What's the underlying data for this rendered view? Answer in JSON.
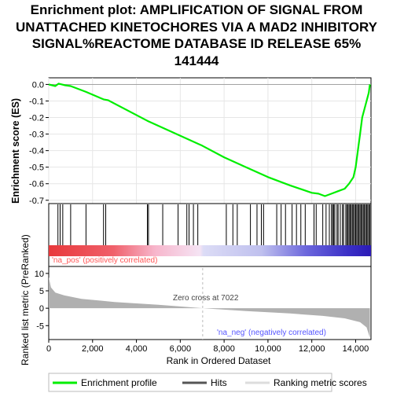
{
  "title_lines": [
    "Enrichment plot: AMPLIFICATION OF SIGNAL FROM",
    "UNATTACHED KINETOCHORES VIA A MAD2 INHIBITORY",
    "SIGNAL%REACTOME DATABASE ID RELEASE 65%",
    "141444"
  ],
  "colors": {
    "es_line": "#00ee00",
    "hit": "#000000",
    "metric_fill": "#b0b0b0",
    "pos_label": "#ff5555",
    "neg_label": "#5555ff",
    "zero_line": "#bbbbbb",
    "grid": "#e6e6e6"
  },
  "chart_data": {
    "type": "line",
    "xlabel": "Rank in Ordered Dataset",
    "es_ylabel": "Enrichment score (ES)",
    "metric_ylabel": "Ranked list metric (PreRanked)",
    "xlim": [
      0,
      14700
    ],
    "x_ticks": [
      0,
      2000,
      4000,
      6000,
      8000,
      10000,
      12000,
      14000
    ],
    "x_tick_labels": [
      "0",
      "2,000",
      "4,000",
      "6,000",
      "8,000",
      "10,000",
      "12,000",
      "14,000"
    ],
    "es_ylim": [
      -0.72,
      0.04
    ],
    "es_ticks": [
      0.0,
      -0.1,
      -0.2,
      -0.3,
      -0.4,
      -0.5,
      -0.6,
      -0.7
    ],
    "es_tick_labels": [
      "0.0",
      "-0.1",
      "-0.2",
      "-0.3",
      "-0.4",
      "-0.5",
      "-0.6",
      "-0.7"
    ],
    "metric_ylim": [
      -9,
      12
    ],
    "metric_ticks": [
      10,
      5,
      0,
      -5
    ],
    "metric_tick_labels": [
      "10",
      "5",
      "0",
      "-5"
    ],
    "zero_cross": 7022,
    "zero_cross_label": "Zero cross at 7022",
    "pos_label": "'na_pos' (positively correlated)",
    "neg_label": "'na_neg' (negatively correlated)",
    "es_points": [
      [
        0,
        0.0
      ],
      [
        300,
        -0.01
      ],
      [
        450,
        0.005
      ],
      [
        600,
        0.0
      ],
      [
        750,
        -0.005
      ],
      [
        1000,
        -0.01
      ],
      [
        1700,
        -0.045
      ],
      [
        2500,
        -0.09
      ],
      [
        2700,
        -0.095
      ],
      [
        4500,
        -0.22
      ],
      [
        5500,
        -0.28
      ],
      [
        7000,
        -0.37
      ],
      [
        8000,
        -0.44
      ],
      [
        9000,
        -0.5
      ],
      [
        10000,
        -0.56
      ],
      [
        11000,
        -0.61
      ],
      [
        12000,
        -0.655
      ],
      [
        12300,
        -0.66
      ],
      [
        12600,
        -0.675
      ],
      [
        12900,
        -0.66
      ],
      [
        13200,
        -0.645
      ],
      [
        13500,
        -0.63
      ],
      [
        13700,
        -0.6
      ],
      [
        13900,
        -0.56
      ],
      [
        14000,
        -0.5
      ],
      [
        14100,
        -0.4
      ],
      [
        14200,
        -0.3
      ],
      [
        14300,
        -0.2
      ],
      [
        14400,
        -0.15
      ],
      [
        14500,
        -0.1
      ],
      [
        14600,
        -0.05
      ],
      [
        14650,
        0.0
      ]
    ],
    "hits": [
      420,
      520,
      640,
      1000,
      1700,
      2500,
      2600,
      4500,
      4550,
      5200,
      5900,
      6300,
      6400,
      6600,
      6800,
      8100,
      8400,
      8600,
      9200,
      9500,
      9700,
      9800,
      10400,
      10600,
      10800,
      11100,
      11300,
      11500,
      11700,
      12100,
      12200,
      12500,
      12650,
      12800,
      12900,
      12950,
      13000,
      13050,
      13150,
      13200,
      13300,
      13400,
      13450,
      13550,
      13600,
      13650,
      13700,
      13750,
      13800,
      13850,
      13900,
      13950,
      14000,
      14050,
      14100,
      14150,
      14200,
      14250,
      14300,
      14350,
      14400,
      14450,
      14500,
      14550,
      14600,
      14650
    ],
    "metric_points": [
      [
        0,
        9.0
      ],
      [
        100,
        6.0
      ],
      [
        300,
        4.5
      ],
      [
        700,
        3.7
      ],
      [
        1500,
        2.7
      ],
      [
        3000,
        1.8
      ],
      [
        5000,
        1.0
      ],
      [
        7022,
        0.0
      ],
      [
        9000,
        -0.8
      ],
      [
        11000,
        -1.5
      ],
      [
        12500,
        -2.2
      ],
      [
        13500,
        -2.9
      ],
      [
        14200,
        -4.0
      ],
      [
        14500,
        -5.5
      ],
      [
        14650,
        -8.5
      ]
    ],
    "legend": [
      "Enrichment profile",
      "Hits",
      "Ranking metric scores"
    ]
  }
}
